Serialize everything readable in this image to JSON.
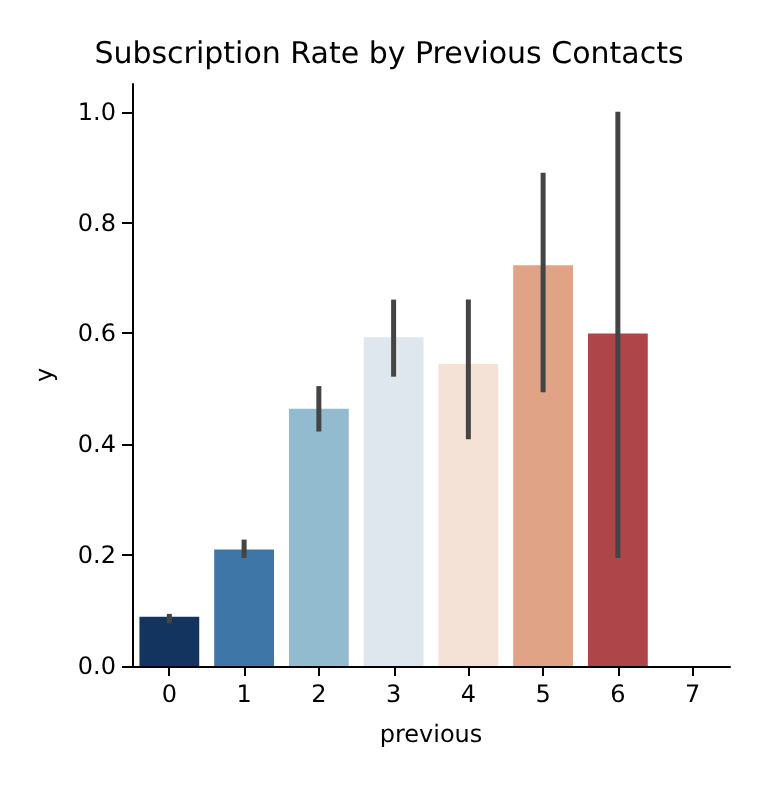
{
  "chart_data": {
    "type": "bar",
    "title": "Subscription Rate by Previous Contacts",
    "xlabel": "previous",
    "ylabel": "y",
    "categories": [
      "0",
      "1",
      "2",
      "3",
      "4",
      "5",
      "6",
      "7"
    ],
    "values": [
      0.089,
      0.21,
      0.464,
      0.593,
      0.545,
      0.723,
      0.6,
      null
    ],
    "colors": [
      "#143460",
      "#3d76a7",
      "#93bbd0",
      "#dee7ee",
      "#f5e2d7",
      "#e1a385",
      "#ae4549",
      "#ae4549"
    ],
    "errors": [
      [
        0.077,
        0.094
      ],
      [
        0.195,
        0.228
      ],
      [
        0.423,
        0.505
      ],
      [
        0.522,
        0.661
      ],
      [
        0.409,
        0.661
      ],
      [
        0.494,
        0.89
      ],
      [
        0.195,
        1.0
      ],
      null
    ],
    "ylim": [
      0,
      1.05
    ],
    "yticks": [
      {
        "value": 0,
        "label": "0.0"
      },
      {
        "value": 0.2,
        "label": "0.2"
      },
      {
        "value": 0.4,
        "label": "0.4"
      },
      {
        "value": 0.6,
        "label": "0.6"
      },
      {
        "value": 0.8,
        "label": "0.8"
      },
      {
        "value": 1,
        "label": "1.0"
      }
    ],
    "grid": false
  }
}
